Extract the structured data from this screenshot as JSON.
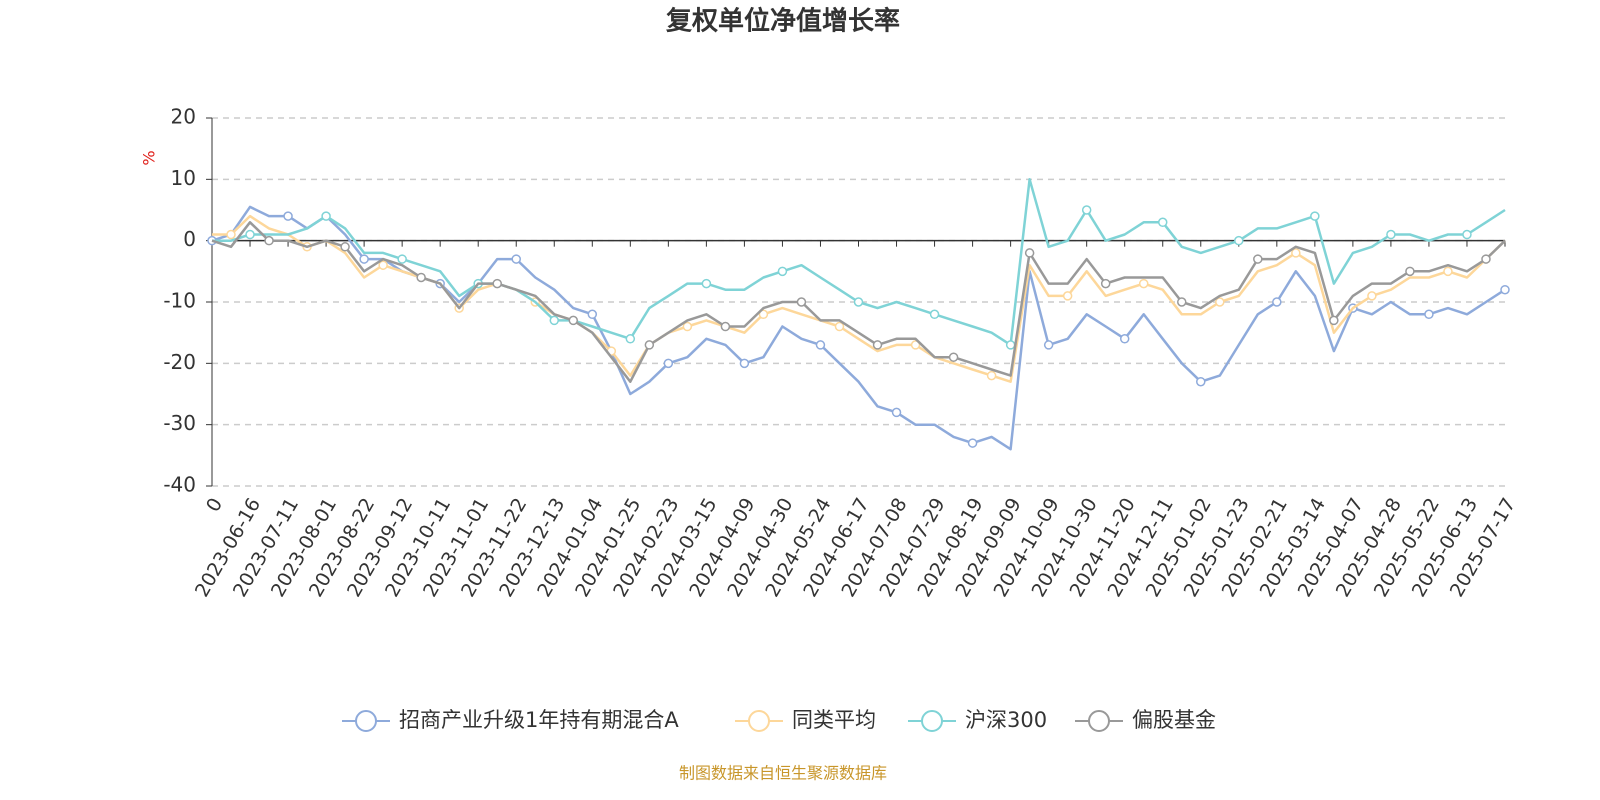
{
  "chart_data": {
    "type": "line",
    "title": "复权单位净值增长率",
    "y_label": "%",
    "source": "制图数据来自恒生聚源数据库",
    "categories": [
      "0",
      null,
      "2023-06-16",
      null,
      "2023-07-11",
      null,
      "2023-08-01",
      null,
      "2023-08-22",
      null,
      "2023-09-12",
      null,
      "2023-10-11",
      null,
      "2023-11-01",
      null,
      "2023-11-22",
      null,
      "2023-12-13",
      null,
      "2024-01-04",
      null,
      "2024-01-25",
      null,
      "2024-02-23",
      null,
      "2024-03-15",
      null,
      "2024-04-09",
      null,
      "2024-04-30",
      null,
      "2024-05-24",
      null,
      "2024-06-17",
      null,
      "2024-07-08",
      null,
      "2024-07-29",
      null,
      "2024-08-19",
      null,
      "2024-09-09",
      null,
      "2024-10-09",
      null,
      "2024-10-30",
      null,
      "2024-11-20",
      null,
      "2024-12-11",
      null,
      "2025-01-02",
      null,
      "2025-01-23",
      null,
      "2025-02-21",
      null,
      "2025-03-14",
      null,
      "2025-04-07",
      null,
      "2025-04-28",
      null,
      "2025-05-22",
      null,
      "2025-06-13",
      null,
      "2025-07-17"
    ],
    "series": [
      {
        "name": "招商产业升级1年持有期混合A",
        "color": "#8eaadb",
        "values": [
          0,
          1,
          5.5,
          4,
          4,
          2,
          4,
          1,
          -3,
          -3,
          -5,
          -6,
          -7,
          -10,
          -7,
          -3,
          -3,
          -6,
          -8,
          -11,
          -12,
          -18,
          -25,
          -23,
          -20,
          -19,
          -16,
          -17,
          -20,
          -19,
          -14,
          -16,
          -17,
          -20,
          -23,
          -27,
          -28,
          -30,
          -30,
          -32,
          -33,
          -32,
          -34,
          -5,
          -17,
          -16,
          -12,
          -14,
          -16,
          -12,
          -16,
          -20,
          -23,
          -22,
          -17,
          -12,
          -10,
          -5,
          -9,
          -18,
          -11,
          -12,
          -10,
          -12,
          -12,
          -11,
          -12,
          -10,
          -8
        ]
      },
      {
        "name": "同类平均",
        "color": "#fdd79a",
        "values": [
          1,
          1,
          4,
          2,
          1,
          -1,
          0,
          -2,
          -6,
          -4,
          -5,
          -6,
          -7,
          -11,
          -8,
          -7,
          -8,
          -10,
          -12,
          -13,
          -15,
          -18,
          -22,
          -17,
          -15,
          -14,
          -13,
          -14,
          -15,
          -12,
          -11,
          -12,
          -13,
          -14,
          -16,
          -18,
          -17,
          -17,
          -19,
          -20,
          -21,
          -22,
          -23,
          -4,
          -9,
          -9,
          -5,
          -9,
          -8,
          -7,
          -8,
          -12,
          -12,
          -10,
          -9,
          -5,
          -4,
          -2,
          -4,
          -15,
          -11,
          -9,
          -8,
          -6,
          -6,
          -5,
          -6,
          -3,
          0
        ]
      },
      {
        "name": "沪深300",
        "color": "#7fd3d6",
        "values": [
          0,
          0,
          1,
          1,
          1,
          2,
          4,
          2,
          -2,
          -2,
          -3,
          -4,
          -5,
          -9,
          -7,
          -7,
          -8,
          -10,
          -13,
          -13,
          -14,
          -15,
          -16,
          -11,
          -9,
          -7,
          -7,
          -8,
          -8,
          -6,
          -5,
          -4,
          -6,
          -8,
          -10,
          -11,
          -10,
          -11,
          -12,
          -13,
          -14,
          -15,
          -17,
          10,
          -1,
          0,
          5,
          0,
          1,
          3,
          3,
          -1,
          -2,
          -1,
          0,
          2,
          2,
          3,
          4,
          -7,
          -2,
          -1,
          1,
          1,
          0,
          1,
          1,
          3,
          5
        ]
      },
      {
        "name": "偏股基金",
        "color": "#999999",
        "values": [
          0,
          -1,
          3,
          0,
          0,
          -1,
          0,
          -1,
          -5,
          -3,
          -4,
          -6,
          -7,
          -11,
          -7,
          -7,
          -8,
          -9,
          -12,
          -13,
          -15,
          -19,
          -23,
          -17,
          -15,
          -13,
          -12,
          -14,
          -14,
          -11,
          -10,
          -10,
          -13,
          -13,
          -15,
          -17,
          -16,
          -16,
          -19,
          -19,
          -20,
          -21,
          -22,
          -2,
          -7,
          -7,
          -3,
          -7,
          -6,
          -6,
          -6,
          -10,
          -11,
          -9,
          -8,
          -3,
          -3,
          -1,
          -2,
          -13,
          -9,
          -7,
          -7,
          -5,
          -5,
          -4,
          -5,
          -3,
          0
        ]
      }
    ],
    "ylim": [
      -40,
      20
    ],
    "yticks": [
      -40,
      -30,
      -20,
      -10,
      0,
      10,
      20
    ],
    "grid": true,
    "legend": "bottom"
  }
}
